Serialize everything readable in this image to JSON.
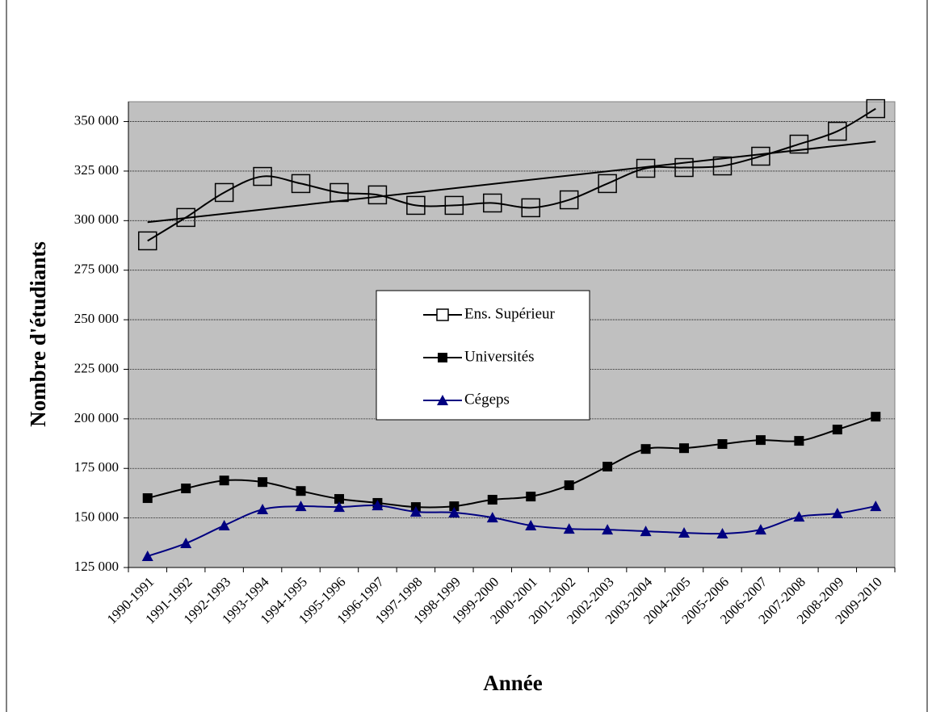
{
  "chart_data": {
    "type": "line",
    "x_label": "Année",
    "y_label": "Nombre d'étudiants",
    "categories": [
      "1990-1991",
      "1991-1992",
      "1992-1993",
      "1993-1994",
      "1994-1995",
      "1995-1996",
      "1996-1997",
      "1997-1998",
      "1998-1999",
      "1999-2000",
      "2000-2001",
      "2001-2002",
      "2002-2003",
      "2003-2004",
      "2004-2005",
      "2005-2006",
      "2006-2007",
      "2007-2008",
      "2008-2009",
      "2009-2010"
    ],
    "series": [
      {
        "name": "Ens. Supérieur",
        "color": "#000000",
        "marker": "square-open",
        "values": [
          289800,
          301600,
          314200,
          322300,
          318700,
          314200,
          313000,
          307700,
          307700,
          308900,
          306500,
          310500,
          318700,
          326400,
          326800,
          327600,
          332500,
          338600,
          345100,
          356500
        ],
        "trend_line": [
          299200,
          339900
        ]
      },
      {
        "name": "Universités",
        "color": "#000000",
        "marker": "square",
        "values": [
          160000,
          164900,
          168900,
          168100,
          163600,
          159600,
          157600,
          155500,
          155900,
          159200,
          160800,
          166500,
          175900,
          184800,
          185200,
          187300,
          189300,
          188900,
          194600,
          201100
        ]
      },
      {
        "name": "Cégeps",
        "color": "#000080",
        "marker": "triangle",
        "values": [
          130700,
          137200,
          146200,
          154300,
          155900,
          155500,
          156300,
          153100,
          152700,
          150200,
          146200,
          144500,
          144100,
          143300,
          142500,
          142100,
          144100,
          150600,
          152300,
          155900
        ]
      }
    ],
    "ylim": [
      125000,
      360000
    ],
    "yticks": [
      {
        "value": 125000,
        "label": "125 000"
      },
      {
        "value": 150000,
        "label": "150 000"
      },
      {
        "value": 175000,
        "label": "175 000"
      },
      {
        "value": 200000,
        "label": "200 000"
      },
      {
        "value": 225000,
        "label": "225 000"
      },
      {
        "value": 250000,
        "label": "250 000"
      },
      {
        "value": 275000,
        "label": "275 000"
      },
      {
        "value": 300000,
        "label": "300 000"
      },
      {
        "value": 325000,
        "label": "325 000"
      },
      {
        "value": 350000,
        "label": "350 000"
      }
    ],
    "grid": true,
    "plot_background": "#c0c0c0"
  }
}
